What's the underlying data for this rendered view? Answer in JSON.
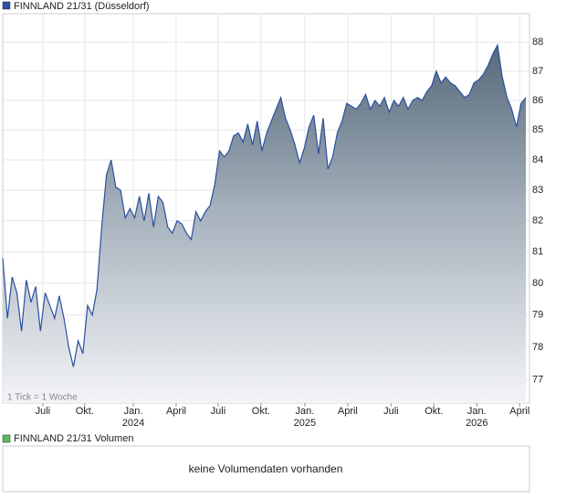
{
  "chart_data": {
    "type": "area",
    "title": "FINNLAND 21/31 (Düsseldorf)",
    "note": "1 Tick = 1 Woche",
    "volume_title": "FINNLAND 21/31 Volumen",
    "volume_message": "keine Volumendaten vorhanden",
    "log": true,
    "grid": true,
    "color": "#2b4fa0",
    "legend_color": "#2b4fa0",
    "volume_color": "#5cb85c",
    "values": [
      80.8,
      78.9,
      80.2,
      79.7,
      78.5,
      80.1,
      79.4,
      79.9,
      78.5,
      79.7,
      79.3,
      78.9,
      79.6,
      78.9,
      78.0,
      77.4,
      78.2,
      77.8,
      79.3,
      79.0,
      79.8,
      81.8,
      83.5,
      84.0,
      83.1,
      83.0,
      82.1,
      82.4,
      82.1,
      82.8,
      82.0,
      82.9,
      81.8,
      82.8,
      82.6,
      81.8,
      81.6,
      82.0,
      81.9,
      81.6,
      81.4,
      82.3,
      82.0,
      82.3,
      82.5,
      83.2,
      84.3,
      84.1,
      84.3,
      84.8,
      84.9,
      84.6,
      85.2,
      84.5,
      85.3,
      84.3,
      84.9,
      85.3,
      85.7,
      86.1,
      85.4,
      85.0,
      84.5,
      83.9,
      84.4,
      85.1,
      85.5,
      84.2,
      85.4,
      83.7,
      84.1,
      84.9,
      85.3,
      85.9,
      85.8,
      85.7,
      85.9,
      86.2,
      85.7,
      86.0,
      85.8,
      86.1,
      85.6,
      86.0,
      85.8,
      86.1,
      85.7,
      86.0,
      86.1,
      86.0,
      86.3,
      86.5,
      87.0,
      86.6,
      86.8,
      86.6,
      86.5,
      86.3,
      86.1,
      86.2,
      86.6,
      86.7,
      86.9,
      87.2,
      87.6,
      87.9,
      86.8,
      86.1,
      85.7,
      85.1,
      85.9,
      86.1
    ],
    "xlim": [
      0,
      111
    ],
    "xticks": [
      {
        "value": 8.5,
        "label": "Juli"
      },
      {
        "value": 17.4,
        "label": "Okt."
      },
      {
        "value": 27.7,
        "label": "Jan.",
        "year": "2024"
      },
      {
        "value": 36.8,
        "label": "April"
      },
      {
        "value": 45.7,
        "label": "Juli"
      },
      {
        "value": 54.8,
        "label": "Okt."
      },
      {
        "value": 64.1,
        "label": "Jan.",
        "year": "2025"
      },
      {
        "value": 73.2,
        "label": "April"
      },
      {
        "value": 82.4,
        "label": "Juli"
      },
      {
        "value": 91.5,
        "label": "Okt."
      },
      {
        "value": 100.6,
        "label": "Jan.",
        "year": "2026"
      },
      {
        "value": 109.7,
        "label": "April"
      }
    ],
    "ylim": [
      76.3,
      89.0
    ],
    "yticks": [
      77,
      78,
      79,
      80,
      81,
      82,
      83,
      84,
      85,
      86,
      87,
      88
    ]
  }
}
